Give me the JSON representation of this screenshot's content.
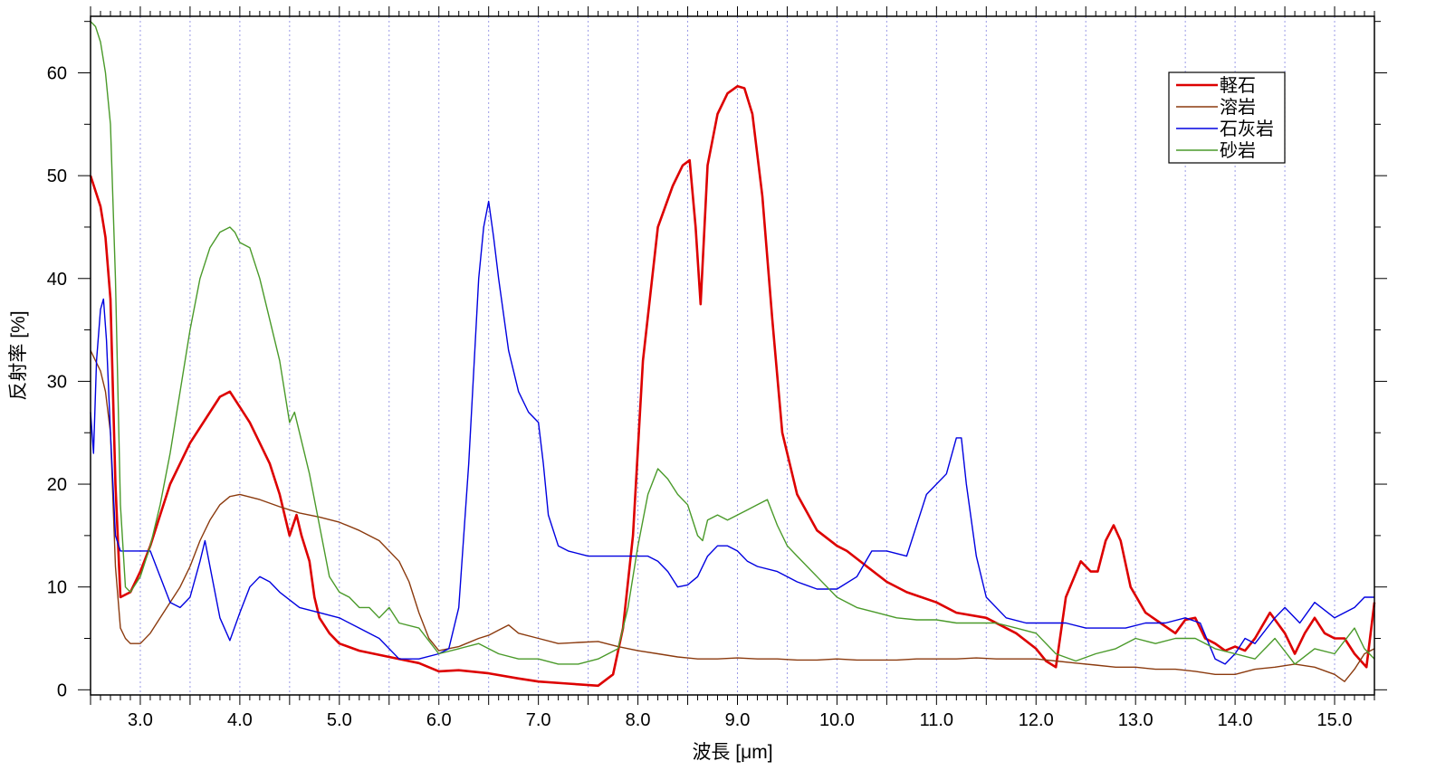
{
  "chart_data": {
    "type": "line",
    "title": "",
    "xlabel": "波長 [μm]",
    "ylabel": "反射率 [%]",
    "xlim": [
      2.5,
      15.4
    ],
    "ylim": [
      -0.5,
      65.5
    ],
    "xticks": [
      3.0,
      4.0,
      5.0,
      6.0,
      7.0,
      8.0,
      9.0,
      10.0,
      11.0,
      12.0,
      13.0,
      14.0,
      15.0
    ],
    "xtick_labels": [
      "3.0",
      "4.0",
      "5.0",
      "6.0",
      "7.0",
      "8.0",
      "9.0",
      "10.0",
      "11.0",
      "12.0",
      "13.0",
      "14.0",
      "15.0"
    ],
    "yticks": [
      0,
      10,
      20,
      30,
      40,
      50,
      60
    ],
    "ytick_labels": [
      "0",
      "10",
      "20",
      "30",
      "40",
      "50",
      "60"
    ],
    "grid": "vertical dotted lines every 0.5 μm",
    "legend_position": "top-right",
    "series": [
      {
        "name": "軽石",
        "color": "#dd0000",
        "x": [
          2.5,
          2.6,
          2.65,
          2.7,
          2.75,
          2.8,
          2.9,
          3.0,
          3.1,
          3.2,
          3.3,
          3.5,
          3.7,
          3.8,
          3.9,
          4.0,
          4.1,
          4.2,
          4.3,
          4.4,
          4.5,
          4.57,
          4.62,
          4.7,
          4.75,
          4.8,
          4.9,
          5.0,
          5.2,
          5.5,
          5.8,
          6.0,
          6.2,
          6.5,
          6.8,
          7.0,
          7.3,
          7.6,
          7.75,
          7.85,
          7.95,
          8.05,
          8.2,
          8.35,
          8.45,
          8.52,
          8.58,
          8.63,
          8.7,
          8.8,
          8.9,
          9.0,
          9.07,
          9.15,
          9.25,
          9.35,
          9.45,
          9.6,
          9.8,
          10.0,
          10.1,
          10.3,
          10.5,
          10.7,
          11.0,
          11.2,
          11.5,
          11.8,
          12.0,
          12.1,
          12.2,
          12.3,
          12.45,
          12.55,
          12.62,
          12.7,
          12.78,
          12.85,
          12.95,
          13.1,
          13.25,
          13.4,
          13.5,
          13.6,
          13.7,
          13.8,
          13.9,
          14.0,
          14.1,
          14.2,
          14.35,
          14.5,
          14.6,
          14.7,
          14.8,
          14.9,
          15.0,
          15.1,
          15.2,
          15.32,
          15.4
        ],
        "y": [
          50,
          47,
          44,
          38,
          20,
          9,
          9.5,
          11.5,
          14,
          17,
          20,
          24,
          27,
          28.5,
          29,
          27.5,
          26,
          24,
          22,
          19,
          15,
          17,
          15,
          12.5,
          9,
          7,
          5.5,
          4.5,
          3.8,
          3.2,
          2.6,
          1.8,
          1.9,
          1.6,
          1.1,
          0.8,
          0.6,
          0.4,
          1.5,
          6,
          15,
          32,
          45,
          49,
          51,
          51.5,
          45,
          37.5,
          51,
          56,
          58,
          58.7,
          58.5,
          56,
          48,
          36,
          25,
          19,
          15.5,
          14,
          13.5,
          12,
          10.5,
          9.5,
          8.5,
          7.5,
          7,
          5.5,
          4,
          2.8,
          2.2,
          9,
          12.5,
          11.5,
          11.5,
          14.5,
          16,
          14.5,
          10,
          7.5,
          6.5,
          5.5,
          6.8,
          7,
          5,
          4.5,
          3.8,
          4.2,
          3.8,
          5,
          7.5,
          5.5,
          3.5,
          5.5,
          7,
          5.5,
          5,
          5,
          3.5,
          2.2,
          8.5
        ]
      },
      {
        "name": "溶岩",
        "color": "#8b3a0e",
        "x": [
          2.5,
          2.6,
          2.65,
          2.7,
          2.75,
          2.8,
          2.85,
          2.9,
          3.0,
          3.1,
          3.2,
          3.3,
          3.4,
          3.5,
          3.6,
          3.7,
          3.8,
          3.9,
          4.0,
          4.2,
          4.4,
          4.6,
          4.8,
          5.0,
          5.2,
          5.4,
          5.6,
          5.7,
          5.8,
          5.9,
          6.0,
          6.2,
          6.4,
          6.5,
          6.6,
          6.7,
          6.8,
          7.0,
          7.2,
          7.4,
          7.6,
          7.8,
          8.0,
          8.2,
          8.4,
          8.6,
          8.8,
          9.0,
          9.2,
          9.4,
          9.6,
          9.8,
          10.0,
          10.2,
          10.4,
          10.6,
          10.8,
          11.0,
          11.2,
          11.4,
          11.6,
          11.8,
          12.0,
          12.2,
          12.4,
          12.6,
          12.8,
          13.0,
          13.2,
          13.4,
          13.6,
          13.8,
          14.0,
          14.2,
          14.4,
          14.6,
          14.8,
          15.0,
          15.1,
          15.2,
          15.3,
          15.4
        ],
        "y": [
          33,
          31,
          29,
          25,
          12,
          6,
          5,
          4.5,
          4.5,
          5.5,
          7,
          8.5,
          10,
          12,
          14.5,
          16.5,
          18,
          18.8,
          19,
          18.5,
          17.8,
          17.2,
          16.8,
          16.3,
          15.5,
          14.5,
          12.5,
          10.5,
          7.5,
          5,
          3.8,
          4.2,
          5,
          5.3,
          5.8,
          6.3,
          5.5,
          5,
          4.5,
          4.6,
          4.7,
          4.2,
          3.8,
          3.5,
          3.2,
          3,
          3,
          3.1,
          3,
          3,
          2.9,
          2.9,
          3,
          2.9,
          2.9,
          2.9,
          3,
          3,
          3,
          3.1,
          3,
          3,
          3,
          2.8,
          2.6,
          2.4,
          2.2,
          2.2,
          2,
          2,
          1.8,
          1.5,
          1.5,
          2,
          2.2,
          2.5,
          2.2,
          1.5,
          0.8,
          2,
          3.5,
          4
        ]
      },
      {
        "name": "石灰岩",
        "color": "#0000e0",
        "x": [
          2.5,
          2.53,
          2.56,
          2.6,
          2.63,
          2.66,
          2.7,
          2.75,
          2.8,
          2.9,
          3.0,
          3.1,
          3.2,
          3.3,
          3.4,
          3.5,
          3.6,
          3.65,
          3.7,
          3.8,
          3.9,
          4.0,
          4.1,
          4.2,
          4.3,
          4.4,
          4.6,
          4.8,
          5.0,
          5.2,
          5.4,
          5.6,
          5.8,
          6.0,
          6.1,
          6.2,
          6.3,
          6.4,
          6.45,
          6.5,
          6.55,
          6.6,
          6.7,
          6.8,
          6.9,
          7.0,
          7.05,
          7.1,
          7.2,
          7.3,
          7.5,
          7.7,
          7.9,
          8.1,
          8.2,
          8.3,
          8.4,
          8.5,
          8.6,
          8.7,
          8.8,
          8.9,
          9.0,
          9.1,
          9.2,
          9.4,
          9.6,
          9.8,
          10.0,
          10.2,
          10.35,
          10.5,
          10.7,
          10.9,
          11.1,
          11.2,
          11.25,
          11.3,
          11.4,
          11.5,
          11.7,
          11.9,
          12.1,
          12.3,
          12.5,
          12.7,
          12.9,
          13.1,
          13.3,
          13.5,
          13.65,
          13.8,
          13.9,
          14.0,
          14.1,
          14.2,
          14.4,
          14.5,
          14.65,
          14.8,
          15.0,
          15.2,
          15.3,
          15.4
        ],
        "y": [
          27,
          23,
          32,
          37,
          38,
          34,
          25,
          15,
          13.5,
          13.5,
          13.5,
          13.5,
          11,
          8.5,
          8,
          9,
          12.5,
          14.5,
          12,
          7,
          4.8,
          7.5,
          10,
          11,
          10.5,
          9.5,
          8,
          7.5,
          7,
          6,
          5,
          3,
          3,
          3.5,
          4,
          8,
          22,
          40,
          45,
          47.5,
          44,
          40,
          33,
          29,
          27,
          26,
          22,
          17,
          14,
          13.5,
          13,
          13,
          13,
          13,
          12.5,
          11.5,
          10,
          10.2,
          11,
          13,
          14,
          14,
          13.5,
          12.5,
          12,
          11.5,
          10.5,
          9.8,
          9.8,
          11,
          13.5,
          13.5,
          13,
          19,
          21,
          24.5,
          24.5,
          20,
          13,
          9,
          7,
          6.5,
          6.5,
          6.5,
          6,
          6,
          6,
          6.5,
          6.5,
          7,
          6.5,
          3,
          2.5,
          3.5,
          5,
          4.5,
          7,
          8,
          6.5,
          8.5,
          7,
          8,
          9,
          9
        ]
      },
      {
        "name": "砂岩",
        "color": "#4a9a2a",
        "x": [
          2.5,
          2.55,
          2.6,
          2.65,
          2.7,
          2.75,
          2.8,
          2.85,
          2.9,
          3.0,
          3.1,
          3.2,
          3.3,
          3.4,
          3.5,
          3.6,
          3.7,
          3.8,
          3.9,
          3.95,
          4.0,
          4.1,
          4.2,
          4.3,
          4.4,
          4.5,
          4.55,
          4.6,
          4.7,
          4.8,
          4.9,
          5.0,
          5.1,
          5.2,
          5.3,
          5.4,
          5.5,
          5.6,
          5.8,
          6.0,
          6.2,
          6.4,
          6.6,
          6.8,
          7.0,
          7.2,
          7.4,
          7.6,
          7.8,
          7.9,
          8.0,
          8.1,
          8.2,
          8.3,
          8.4,
          8.5,
          8.6,
          8.65,
          8.7,
          8.8,
          8.9,
          9.0,
          9.1,
          9.2,
          9.3,
          9.4,
          9.5,
          9.6,
          9.8,
          10.0,
          10.2,
          10.4,
          10.6,
          10.8,
          11.0,
          11.2,
          11.4,
          11.6,
          11.8,
          12.0,
          12.2,
          12.4,
          12.6,
          12.8,
          13.0,
          13.2,
          13.4,
          13.6,
          13.8,
          14.0,
          14.2,
          14.4,
          14.6,
          14.8,
          15.0,
          15.2,
          15.3,
          15.4
        ],
        "y": [
          65,
          64.5,
          63,
          60,
          55,
          40,
          18,
          10,
          9.5,
          11,
          14,
          18,
          23,
          29,
          35,
          40,
          43,
          44.5,
          45,
          44.5,
          43.5,
          43,
          40,
          36,
          32,
          26,
          27,
          25,
          21,
          16,
          11,
          9.5,
          9,
          8,
          8,
          7,
          8,
          6.5,
          6,
          3.5,
          4,
          4.5,
          3.5,
          3,
          3,
          2.5,
          2.5,
          3,
          4,
          8,
          14,
          19,
          21.5,
          20.5,
          19,
          18,
          15,
          14.5,
          16.5,
          17,
          16.5,
          17,
          17.5,
          18,
          18.5,
          16,
          14,
          13,
          11,
          9,
          8,
          7.5,
          7,
          6.8,
          6.8,
          6.5,
          6.5,
          6.5,
          6,
          5.5,
          3.5,
          2.8,
          3.5,
          4,
          5,
          4.5,
          5,
          5,
          4,
          3.5,
          3,
          5,
          2.5,
          4,
          3.5,
          6,
          4,
          3
        ]
      }
    ]
  }
}
